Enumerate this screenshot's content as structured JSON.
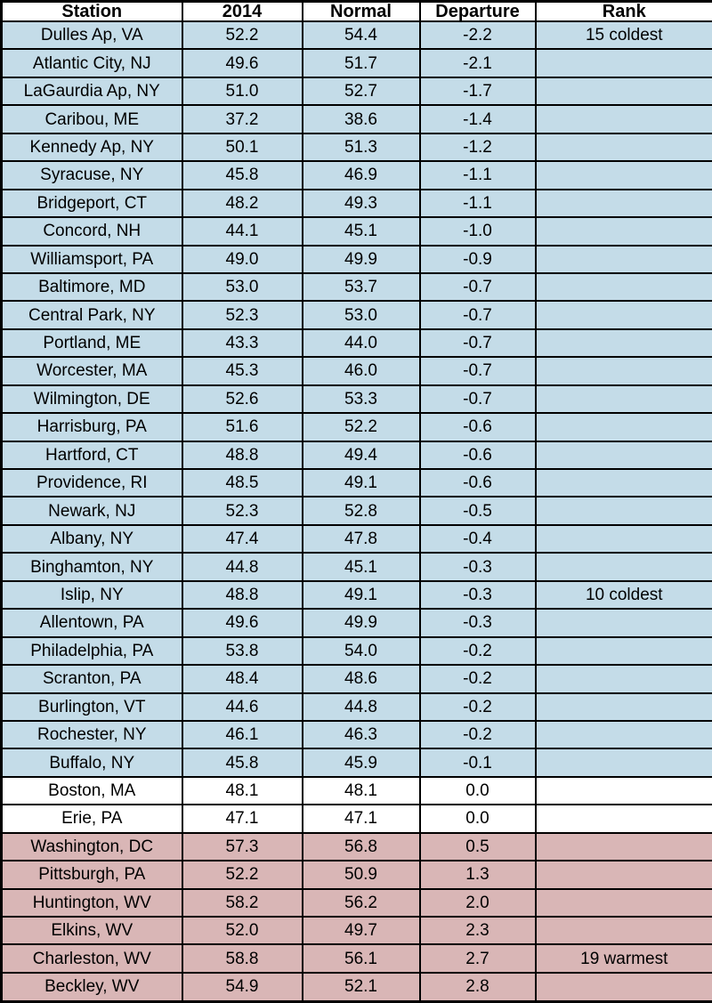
{
  "chart_data": {
    "type": "table",
    "columns": [
      "Station",
      "2014",
      "Normal",
      "Departure",
      "Rank"
    ],
    "rows": [
      {
        "station": "Dulles Ap, VA",
        "y2014": "52.2",
        "normal": "54.4",
        "departure": "-2.2",
        "rank": "15 coldest"
      },
      {
        "station": "Atlantic City, NJ",
        "y2014": "49.6",
        "normal": "51.7",
        "departure": "-2.1",
        "rank": ""
      },
      {
        "station": "LaGaurdia Ap, NY",
        "y2014": "51.0",
        "normal": "52.7",
        "departure": "-1.7",
        "rank": ""
      },
      {
        "station": "Caribou, ME",
        "y2014": "37.2",
        "normal": "38.6",
        "departure": "-1.4",
        "rank": ""
      },
      {
        "station": "Kennedy Ap, NY",
        "y2014": "50.1",
        "normal": "51.3",
        "departure": "-1.2",
        "rank": ""
      },
      {
        "station": "Syracuse, NY",
        "y2014": "45.8",
        "normal": "46.9",
        "departure": "-1.1",
        "rank": ""
      },
      {
        "station": "Bridgeport, CT",
        "y2014": "48.2",
        "normal": "49.3",
        "departure": "-1.1",
        "rank": ""
      },
      {
        "station": "Concord, NH",
        "y2014": "44.1",
        "normal": "45.1",
        "departure": "-1.0",
        "rank": ""
      },
      {
        "station": "Williamsport, PA",
        "y2014": "49.0",
        "normal": "49.9",
        "departure": "-0.9",
        "rank": ""
      },
      {
        "station": "Baltimore, MD",
        "y2014": "53.0",
        "normal": "53.7",
        "departure": "-0.7",
        "rank": ""
      },
      {
        "station": "Central Park, NY",
        "y2014": "52.3",
        "normal": "53.0",
        "departure": "-0.7",
        "rank": ""
      },
      {
        "station": "Portland, ME",
        "y2014": "43.3",
        "normal": "44.0",
        "departure": "-0.7",
        "rank": ""
      },
      {
        "station": "Worcester, MA",
        "y2014": "45.3",
        "normal": "46.0",
        "departure": "-0.7",
        "rank": ""
      },
      {
        "station": "Wilmington, DE",
        "y2014": "52.6",
        "normal": "53.3",
        "departure": "-0.7",
        "rank": ""
      },
      {
        "station": "Harrisburg, PA",
        "y2014": "51.6",
        "normal": "52.2",
        "departure": "-0.6",
        "rank": ""
      },
      {
        "station": "Hartford, CT",
        "y2014": "48.8",
        "normal": "49.4",
        "departure": "-0.6",
        "rank": ""
      },
      {
        "station": "Providence, RI",
        "y2014": "48.5",
        "normal": "49.1",
        "departure": "-0.6",
        "rank": ""
      },
      {
        "station": "Newark, NJ",
        "y2014": "52.3",
        "normal": "52.8",
        "departure": "-0.5",
        "rank": ""
      },
      {
        "station": "Albany, NY",
        "y2014": "47.4",
        "normal": "47.8",
        "departure": "-0.4",
        "rank": ""
      },
      {
        "station": "Binghamton, NY",
        "y2014": "44.8",
        "normal": "45.1",
        "departure": "-0.3",
        "rank": ""
      },
      {
        "station": "Islip, NY",
        "y2014": "48.8",
        "normal": "49.1",
        "departure": "-0.3",
        "rank": "10 coldest"
      },
      {
        "station": "Allentown, PA",
        "y2014": "49.6",
        "normal": "49.9",
        "departure": "-0.3",
        "rank": ""
      },
      {
        "station": "Philadelphia, PA",
        "y2014": "53.8",
        "normal": "54.0",
        "departure": "-0.2",
        "rank": ""
      },
      {
        "station": "Scranton, PA",
        "y2014": "48.4",
        "normal": "48.6",
        "departure": "-0.2",
        "rank": ""
      },
      {
        "station": "Burlington, VT",
        "y2014": "44.6",
        "normal": "44.8",
        "departure": "-0.2",
        "rank": ""
      },
      {
        "station": "Rochester, NY",
        "y2014": "46.1",
        "normal": "46.3",
        "departure": "-0.2",
        "rank": ""
      },
      {
        "station": "Buffalo, NY",
        "y2014": "45.8",
        "normal": "45.9",
        "departure": "-0.1",
        "rank": ""
      },
      {
        "station": "Boston, MA",
        "y2014": "48.1",
        "normal": "48.1",
        "departure": "0.0",
        "rank": ""
      },
      {
        "station": "Erie, PA",
        "y2014": "47.1",
        "normal": "47.1",
        "departure": "0.0",
        "rank": ""
      },
      {
        "station": "Washington, DC",
        "y2014": "57.3",
        "normal": "56.8",
        "departure": "0.5",
        "rank": ""
      },
      {
        "station": "Pittsburgh, PA",
        "y2014": "52.2",
        "normal": "50.9",
        "departure": "1.3",
        "rank": ""
      },
      {
        "station": "Huntington, WV",
        "y2014": "58.2",
        "normal": "56.2",
        "departure": "2.0",
        "rank": ""
      },
      {
        "station": "Elkins, WV",
        "y2014": "52.0",
        "normal": "49.7",
        "departure": "2.3",
        "rank": ""
      },
      {
        "station": "Charleston, WV",
        "y2014": "58.8",
        "normal": "56.1",
        "departure": "2.7",
        "rank": "19 warmest"
      },
      {
        "station": "Beckley, WV",
        "y2014": "54.9",
        "normal": "52.1",
        "departure": "2.8",
        "rank": ""
      }
    ]
  },
  "colors": {
    "below_normal_row_bg": "#c4dce8",
    "above_normal_row_bg": "#d9b6b6",
    "zero_departure_row_bg": "#ffffff",
    "header_bg": "#ffffff",
    "border": "#000000",
    "text": "#000000"
  }
}
